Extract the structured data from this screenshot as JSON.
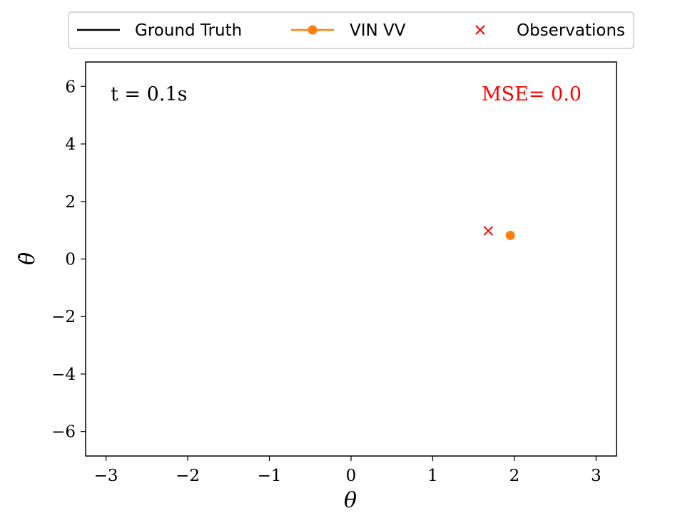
{
  "chart_data": {
    "type": "scatter",
    "title": "",
    "xlabel": "θ",
    "ylabel": "θ̇",
    "xlim": [
      -3.25,
      3.25
    ],
    "ylim": [
      -6.85,
      6.85
    ],
    "xticks": [
      -3,
      -2,
      -1,
      0,
      1,
      2,
      3
    ],
    "xtick_labels": [
      "−3",
      "−2",
      "−1",
      "0",
      "1",
      "2",
      "3"
    ],
    "yticks": [
      -6,
      -4,
      -2,
      0,
      2,
      4,
      6
    ],
    "ytick_labels": [
      "−6",
      "−4",
      "−2",
      "0",
      "2",
      "4",
      "6"
    ],
    "grid": false,
    "legend_placement": "top-center",
    "series": [
      {
        "name": "Ground Truth",
        "color": "#000000",
        "marker": "line",
        "x": [],
        "y": []
      },
      {
        "name": "VIN VV",
        "color": "#ff7f0e",
        "marker": "circle",
        "x": [
          1.95
        ],
        "y": [
          0.82
        ]
      },
      {
        "name": "Observations",
        "color": "#ff0000",
        "marker": "x",
        "x": [
          1.68
        ],
        "y": [
          0.98
        ]
      }
    ],
    "annotations": {
      "time_text": "t = 0.1s",
      "mse_text": "MSE= 0.0",
      "mse_color": "#ff0000"
    }
  }
}
